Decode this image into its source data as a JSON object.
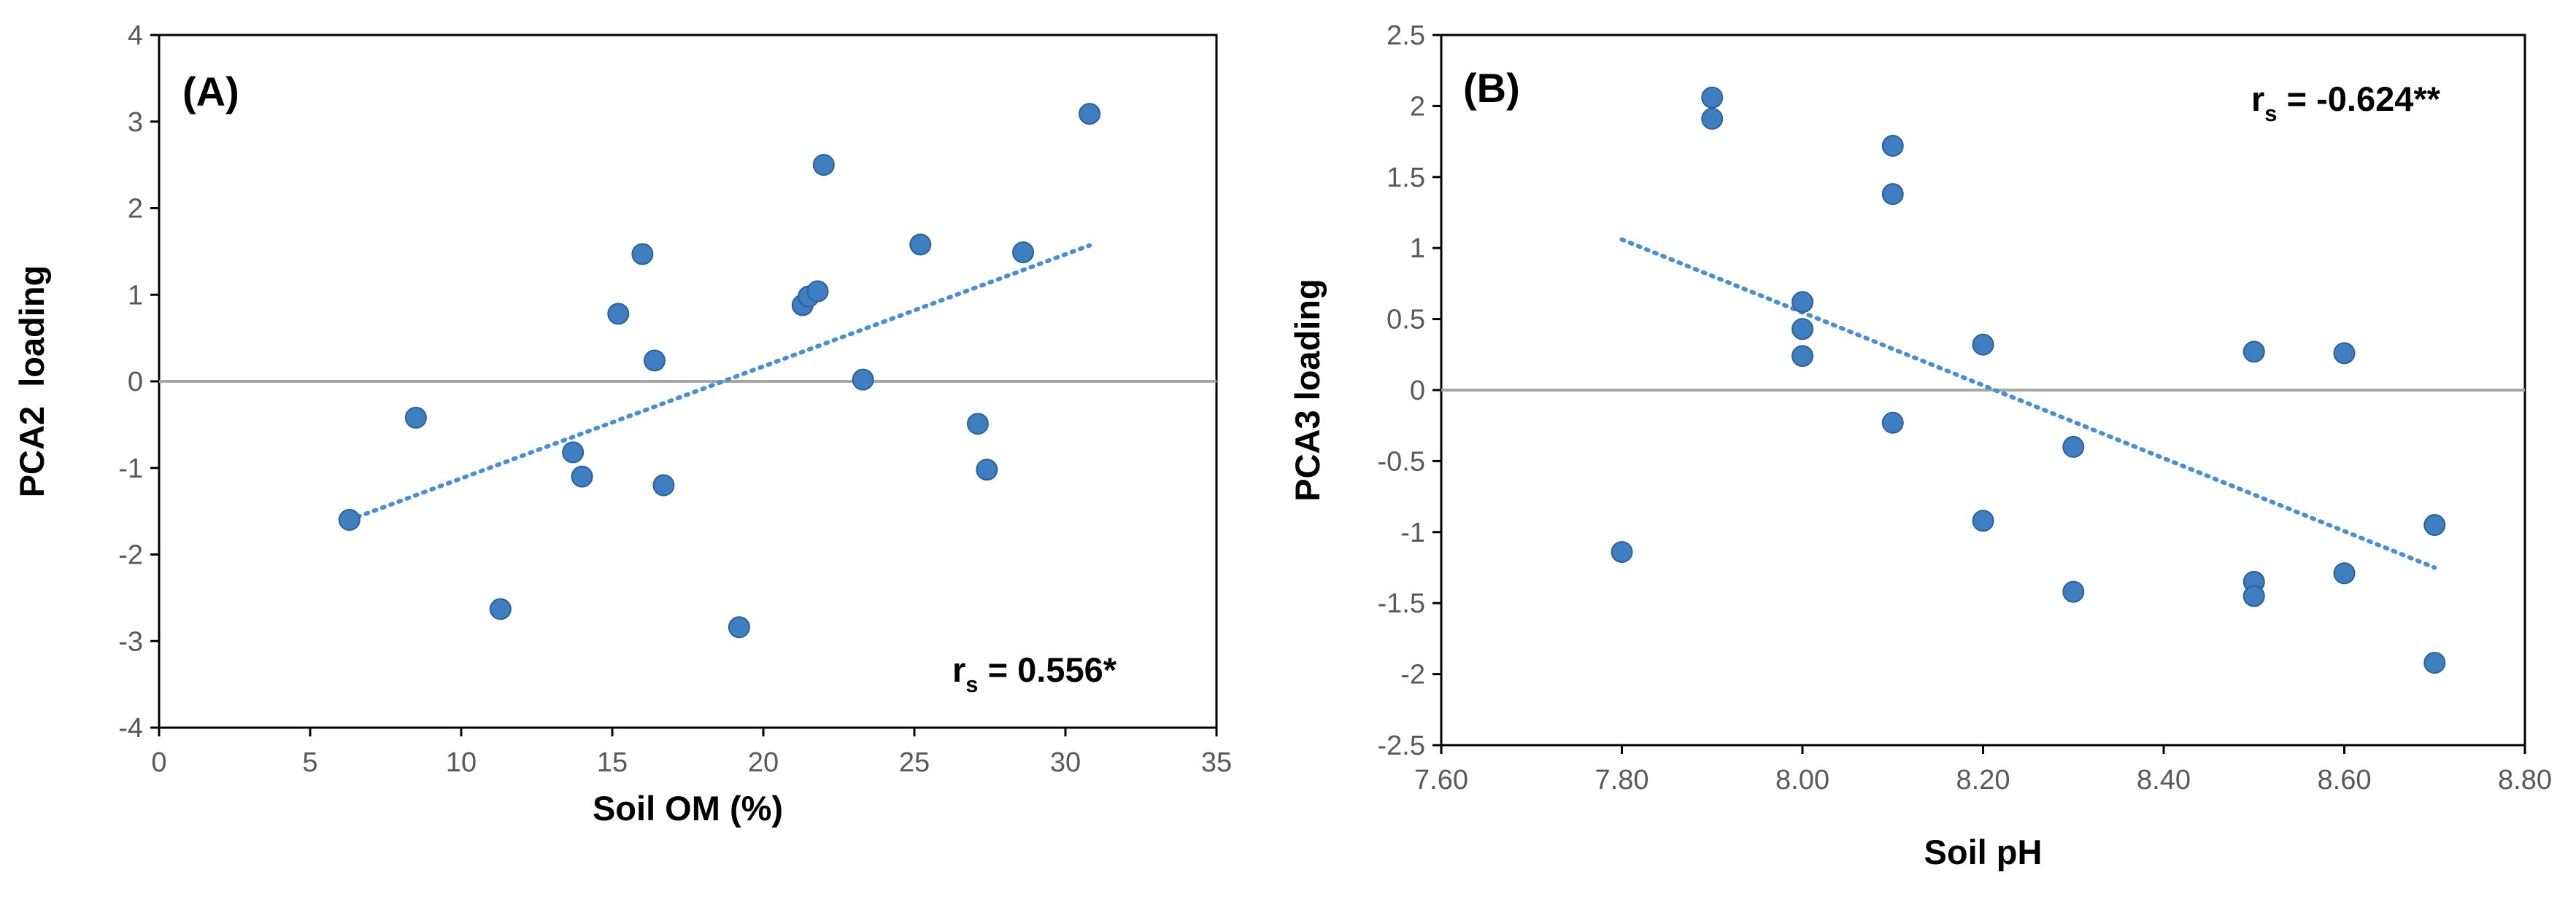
{
  "colors": {
    "point": "#3f7fc1",
    "point_edge": "#2e5f96",
    "trend": "#4a90d0",
    "zero_line": "#a6a6a6",
    "frame": "#000000"
  },
  "chart_data": [
    {
      "type": "scatter",
      "panel_label": "(A)",
      "xlabel": "Soil OM (%)",
      "ylabel": "PCA2  loading",
      "xlim": [
        0,
        35
      ],
      "ylim": [
        -4,
        4
      ],
      "x_ticks": [
        0,
        5,
        10,
        15,
        20,
        25,
        30,
        35
      ],
      "y_ticks": [
        -4,
        -3,
        -2,
        -1,
        0,
        1,
        2,
        3,
        4
      ],
      "x_tick_labels": [
        "0",
        "5",
        "10",
        "15",
        "20",
        "25",
        "30",
        "35"
      ],
      "y_tick_labels": [
        "-4",
        "-3",
        "-2",
        "-1",
        "0",
        "1",
        "2",
        "3",
        "4"
      ],
      "correlation": {
        "prefix": "r",
        "subscript": "s",
        "value": " = 0.556*"
      },
      "trendline": {
        "style": "dotted",
        "x": [
          6.3,
          30.8
        ],
        "y": [
          -1.6,
          1.57
        ]
      },
      "points": [
        {
          "x": 6.3,
          "y": -1.6
        },
        {
          "x": 8.5,
          "y": -0.42
        },
        {
          "x": 11.3,
          "y": -2.63
        },
        {
          "x": 13.7,
          "y": -0.82
        },
        {
          "x": 14.0,
          "y": -1.1
        },
        {
          "x": 15.2,
          "y": 0.78
        },
        {
          "x": 16.0,
          "y": 1.47
        },
        {
          "x": 16.4,
          "y": 0.24
        },
        {
          "x": 16.7,
          "y": -1.2
        },
        {
          "x": 19.2,
          "y": -2.84
        },
        {
          "x": 21.3,
          "y": 0.88
        },
        {
          "x": 21.5,
          "y": 0.98
        },
        {
          "x": 21.8,
          "y": 1.04
        },
        {
          "x": 22.0,
          "y": 2.5
        },
        {
          "x": 23.3,
          "y": 0.02
        },
        {
          "x": 25.2,
          "y": 1.58
        },
        {
          "x": 27.1,
          "y": -0.49
        },
        {
          "x": 27.4,
          "y": -1.02
        },
        {
          "x": 28.6,
          "y": 1.49
        },
        {
          "x": 30.8,
          "y": 3.09
        }
      ]
    },
    {
      "type": "scatter",
      "panel_label": "(B)",
      "xlabel": "Soil pH",
      "ylabel": "PCA3 loading",
      "xlim": [
        7.6,
        8.8
      ],
      "ylim": [
        -2.5,
        2.5
      ],
      "x_ticks": [
        7.6,
        7.8,
        8.0,
        8.2,
        8.4,
        8.6,
        8.8
      ],
      "y_ticks": [
        -2.5,
        -2,
        -1.5,
        -1,
        -0.5,
        0,
        0.5,
        1,
        1.5,
        2,
        2.5
      ],
      "x_tick_labels": [
        "7.60",
        "7.80",
        "8.00",
        "8.20",
        "8.40",
        "8.60",
        "8.80"
      ],
      "y_tick_labels": [
        "-2.5",
        "-2",
        "-1.5",
        "-1",
        "-0.5",
        "0",
        "0.5",
        "1",
        "1.5",
        "2",
        "2.5"
      ],
      "correlation": {
        "prefix": "r",
        "subscript": "s",
        "value": " = -0.624**"
      },
      "trendline": {
        "style": "dotted",
        "x": [
          7.8,
          8.7
        ],
        "y": [
          1.06,
          -1.25
        ]
      },
      "points": [
        {
          "x": 7.8,
          "y": -1.14
        },
        {
          "x": 7.9,
          "y": 2.06
        },
        {
          "x": 7.9,
          "y": 1.91
        },
        {
          "x": 8.0,
          "y": 0.62
        },
        {
          "x": 8.0,
          "y": 0.43
        },
        {
          "x": 8.0,
          "y": 0.24
        },
        {
          "x": 8.1,
          "y": 1.72
        },
        {
          "x": 8.1,
          "y": 1.38
        },
        {
          "x": 8.1,
          "y": -0.23
        },
        {
          "x": 8.2,
          "y": 0.32
        },
        {
          "x": 8.2,
          "y": -0.92
        },
        {
          "x": 8.3,
          "y": -0.4
        },
        {
          "x": 8.3,
          "y": -1.42
        },
        {
          "x": 8.5,
          "y": 0.27
        },
        {
          "x": 8.5,
          "y": -1.35
        },
        {
          "x": 8.5,
          "y": -1.45
        },
        {
          "x": 8.6,
          "y": 0.26
        },
        {
          "x": 8.6,
          "y": -1.29
        },
        {
          "x": 8.7,
          "y": -0.95
        },
        {
          "x": 8.7,
          "y": -1.92
        }
      ]
    }
  ]
}
